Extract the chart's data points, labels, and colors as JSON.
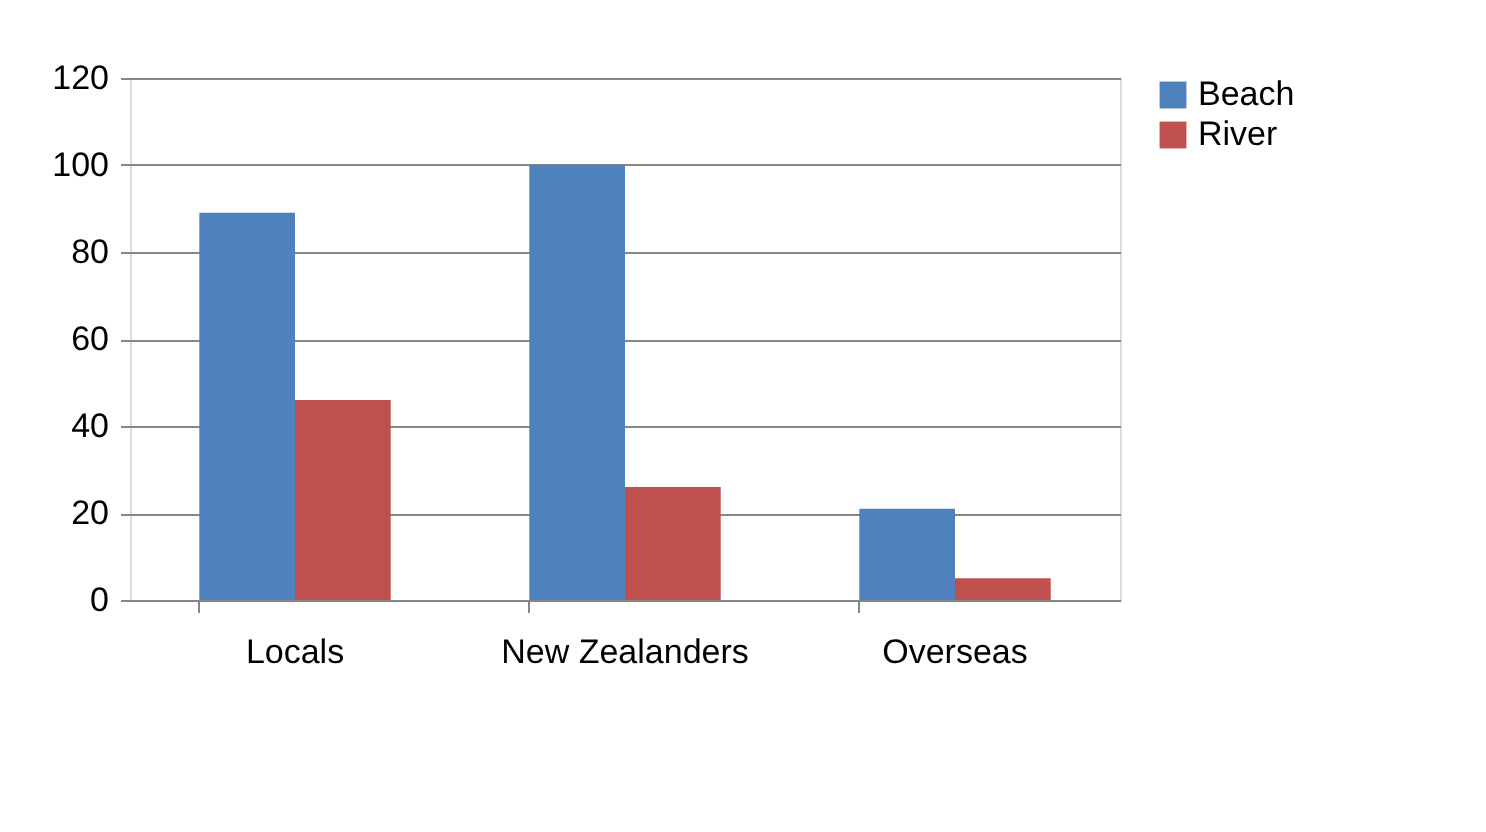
{
  "chart_data": {
    "type": "bar",
    "categories": [
      "Locals",
      "New Zealanders",
      "Overseas"
    ],
    "series": [
      {
        "name": "Beach",
        "color": "#4f81bd",
        "values": [
          89,
          100,
          21
        ]
      },
      {
        "name": "River",
        "color": "#c0504d",
        "values": [
          46,
          26,
          5
        ]
      }
    ],
    "ylim": [
      0,
      120
    ],
    "yticks": [
      0,
      20,
      40,
      60,
      80,
      100,
      120
    ],
    "grid": "y",
    "legend": "right"
  }
}
